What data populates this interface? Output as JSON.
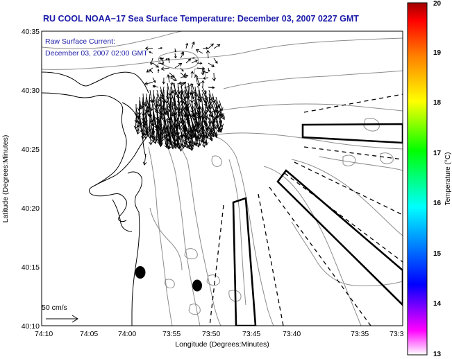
{
  "title": "RU COOL  NOAA−17  Sea Surface Temperature:  December 03, 2007 0227 GMT",
  "annotation": {
    "line1": "Raw Surface Current:",
    "line2": "December 03, 2007 02:00 GMT"
  },
  "scale_label": "50 cm/s",
  "x_axis": {
    "label": "Longitude (Degrees:Minutes)",
    "ticks": [
      "74:10",
      "74:05",
      "74:00",
      "73:55",
      "73:50",
      "73:45",
      "73:40",
      "73:35",
      "73:3"
    ]
  },
  "y_axis": {
    "label": "Latitude (Degrees:Minutes)",
    "ticks": [
      "40:35",
      "40:30",
      "40:25",
      "40:20",
      "40:15",
      "40:10"
    ]
  },
  "colorbar": {
    "label": "Temperature (°C)",
    "ticks": [
      "20",
      "19",
      "18",
      "17",
      "16",
      "15",
      "14",
      "13"
    ],
    "colors": [
      "#ff00ff",
      "#0000ff",
      "#00ffff",
      "#00ff00",
      "#ffff00",
      "#ff8000",
      "#ff0000",
      "#a00000"
    ]
  },
  "colors": {
    "title": "#1a1aa8",
    "contour": "#8c8c8c",
    "coast": "#000000"
  }
}
